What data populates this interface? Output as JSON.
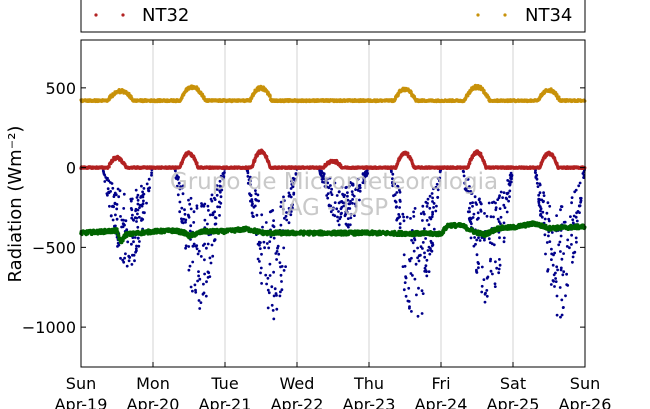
{
  "chart_data": {
    "type": "scatter",
    "ylabel": "Radiation (Wm⁻²)",
    "ylim": [
      -1250,
      800
    ],
    "yticks": [
      500,
      0,
      -500,
      -1000
    ],
    "ytick_labels": [
      "500",
      "0",
      "−500",
      "−1000"
    ],
    "xlim_days": [
      0,
      7
    ],
    "xtick_days": [
      "Sun",
      "Mon",
      "Tue",
      "Wed",
      "Thu",
      "Fri",
      "Sat",
      "Sun"
    ],
    "xtick_dates": [
      "Apr-19",
      "Apr-20",
      "Apr-21",
      "Apr-22",
      "Apr-23",
      "Apr-24",
      "Apr-25",
      "Apr-26"
    ],
    "grid": "vertical",
    "watermark": [
      "Grupo de Micrometeorologia",
      "IAG - USP"
    ],
    "legend_placement": "top",
    "series": [
      {
        "name": "NT32",
        "color": "#b22222",
        "marker": "dot",
        "kind": "daily_peak",
        "base": 0,
        "noise": 5,
        "peaks": [
          [
            0.5,
            0.25,
            60
          ],
          [
            1.5,
            0.25,
            90
          ],
          [
            2.5,
            0.25,
            100
          ],
          [
            3.5,
            0.25,
            40
          ],
          [
            4.5,
            0.25,
            90
          ],
          [
            5.5,
            0.25,
            95
          ],
          [
            6.5,
            0.25,
            90
          ]
        ]
      },
      {
        "name": "NT34",
        "color": "#c8920a",
        "marker": "dot",
        "kind": "daily_peak",
        "base": 420,
        "noise": 6,
        "peaks": [
          [
            0.55,
            0.35,
            60
          ],
          [
            1.55,
            0.35,
            85
          ],
          [
            2.5,
            0.3,
            80
          ],
          [
            3.5,
            0.3,
            0
          ],
          [
            4.5,
            0.3,
            70
          ],
          [
            5.5,
            0.35,
            85
          ],
          [
            6.5,
            0.3,
            65
          ]
        ]
      },
      {
        "name": "",
        "color": "#00008b",
        "marker": "dot",
        "kind": "scattered_dip",
        "base": 0,
        "dips": [
          [
            0.3,
            0.7,
            -640
          ],
          [
            1.3,
            0.7,
            -890
          ],
          [
            2.3,
            0.7,
            -980
          ],
          [
            3.3,
            0.7,
            -400
          ],
          [
            4.3,
            0.7,
            -1020
          ],
          [
            5.3,
            0.7,
            -880
          ],
          [
            6.3,
            0.7,
            -940
          ]
        ]
      },
      {
        "name": "",
        "color": "#006400",
        "marker": "dot",
        "kind": "band",
        "values_by_day": [
          [
            0.0,
            -410
          ],
          [
            0.5,
            -395
          ],
          [
            0.55,
            -470
          ],
          [
            0.62,
            -420
          ],
          [
            1.0,
            -400
          ],
          [
            1.3,
            -395
          ],
          [
            1.45,
            -410
          ],
          [
            1.5,
            -430
          ],
          [
            1.7,
            -400
          ],
          [
            2.0,
            -400
          ],
          [
            2.3,
            -385
          ],
          [
            2.55,
            -410
          ],
          [
            3.0,
            -410
          ],
          [
            4.0,
            -410
          ],
          [
            5.0,
            -415
          ],
          [
            5.1,
            -360
          ],
          [
            5.3,
            -365
          ],
          [
            5.45,
            -400
          ],
          [
            5.6,
            -420
          ],
          [
            5.8,
            -380
          ],
          [
            6.0,
            -375
          ],
          [
            6.3,
            -350
          ],
          [
            6.5,
            -380
          ],
          [
            7.0,
            -370
          ]
        ],
        "noise": 12
      }
    ]
  }
}
